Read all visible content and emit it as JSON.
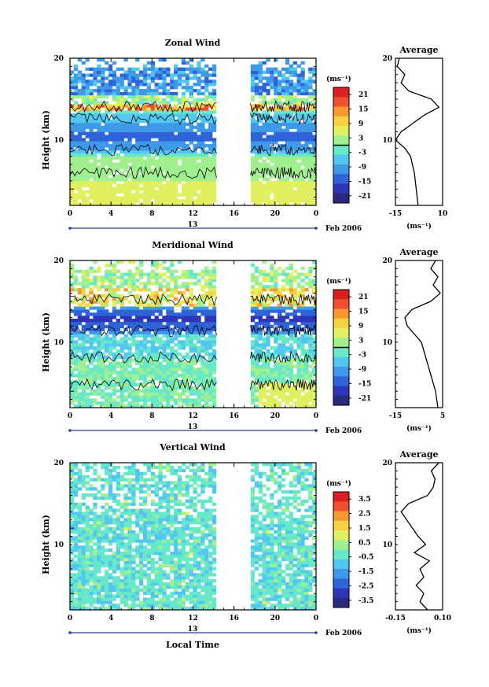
{
  "figure": {
    "xlabel": "Local Time",
    "ylabel": "Height (km)",
    "date_label": "Feb 2006",
    "day_label": "13",
    "x_ticks": [
      "0",
      "4",
      "8",
      "12",
      "16",
      "20",
      "0"
    ],
    "unit_label": "(ms⁻¹)"
  },
  "chart_data": [
    {
      "type": "heatmap",
      "title": "Zonal Wind",
      "x_range": [
        0,
        24
      ],
      "ylim": [
        2,
        20
      ],
      "y_ticks": [
        10,
        20
      ],
      "colorbar": {
        "ticks": [
          "21",
          "15",
          "9",
          "3",
          "-3",
          "-9",
          "-15",
          "-21"
        ],
        "range": [
          -24,
          24
        ],
        "mark": 0
      },
      "profile": {
        "title": "Average",
        "x_ticks": [
          "-15",
          "10"
        ],
        "xlim": [
          -15,
          10
        ],
        "y_ticks": [
          "20",
          "10"
        ],
        "heights": [
          2,
          4,
          6,
          8,
          9,
          10,
          11,
          12,
          13,
          14,
          15,
          16,
          17,
          18,
          19,
          20
        ],
        "values": [
          -3,
          -4,
          -5,
          -7,
          -10,
          -15,
          -12,
          -6,
          0,
          8,
          4,
          -8,
          -12,
          -10,
          -14,
          -13
        ]
      }
    },
    {
      "type": "heatmap",
      "title": "Meridional Wind",
      "x_range": [
        0,
        24
      ],
      "ylim": [
        2,
        20
      ],
      "y_ticks": [
        10,
        20
      ],
      "colorbar": {
        "ticks": [
          "21",
          "15",
          "9",
          "3",
          "-3",
          "-9",
          "-15",
          "-21"
        ],
        "range": [
          -24,
          24
        ],
        "mark": 0
      },
      "profile": {
        "title": "Average",
        "x_ticks": [
          "-15",
          "5"
        ],
        "xlim": [
          -15,
          5
        ],
        "y_ticks": [
          "20",
          "10"
        ],
        "heights": [
          2,
          4,
          6,
          8,
          10,
          11,
          12,
          13,
          14,
          15,
          16,
          17,
          18,
          19,
          20
        ],
        "values": [
          3,
          2,
          0,
          -2,
          -4,
          -7,
          -10,
          -11,
          -8,
          0,
          4,
          1,
          3,
          0,
          2
        ]
      }
    },
    {
      "type": "heatmap",
      "title": "Vertical Wind",
      "x_range": [
        0,
        24
      ],
      "ylim": [
        2,
        20
      ],
      "y_ticks": [
        10,
        20
      ],
      "colorbar": {
        "ticks": [
          "3.5",
          "2.5",
          "1.5",
          "0.5",
          "-0.5",
          "-1.5",
          "-2.5",
          "-3.5"
        ],
        "range": [
          -4,
          4
        ],
        "mark": null
      },
      "profile": {
        "title": "Average",
        "x_ticks": [
          "-0.15",
          "0.10"
        ],
        "xlim": [
          -0.15,
          0.1
        ],
        "y_ticks": [
          "20",
          "10"
        ],
        "heights": [
          2,
          3,
          4,
          5,
          6,
          7,
          8,
          9,
          10,
          11,
          12,
          13,
          14,
          15,
          16,
          17,
          18,
          19,
          20
        ],
        "values": [
          0.02,
          -0.02,
          0.0,
          -0.04,
          0.0,
          -0.02,
          0.03,
          -0.05,
          0.01,
          -0.03,
          -0.06,
          -0.09,
          -0.12,
          -0.08,
          0.02,
          0.05,
          0.06,
          0.04,
          0.08
        ]
      }
    }
  ],
  "colors": {
    "scale": [
      "#2a2a7a",
      "#2d36b8",
      "#2f63d8",
      "#3e9ae8",
      "#52c8f0",
      "#68e8c8",
      "#a0f090",
      "#e0f060",
      "#f8d040",
      "#f89830",
      "#f05030",
      "#d82020"
    ],
    "contour": "#000000"
  }
}
